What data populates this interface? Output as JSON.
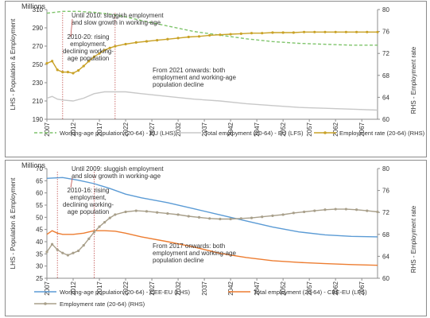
{
  "chart_data": [
    {
      "type": "line",
      "units": "Millions",
      "ylabel": "LHS - Population & Employment",
      "y2label": "RHS - Employment rate",
      "ylim": [
        190,
        310
      ],
      "yticks": [
        190,
        210,
        230,
        250,
        270,
        290,
        310
      ],
      "y2lim": [
        60,
        80
      ],
      "y2ticks": [
        60,
        64,
        68,
        72,
        76,
        80
      ],
      "xticks": [
        2007,
        2012,
        2017,
        2022,
        2027,
        2032,
        2037,
        2042,
        2047,
        2052,
        2057,
        2062,
        2067
      ],
      "xlim": [
        2007,
        2070
      ],
      "annotations": [
        {
          "lines": [
            "Until 2010: sluggish employment",
            "and slow growth in working-age"
          ],
          "marker_year": 2010
        },
        {
          "lines": [
            "2010-20: rising",
            "employment,",
            "declining working-",
            "age population"
          ],
          "marker_year": 2020
        },
        {
          "lines": [
            "From 2021 onwards: both",
            "employment and working-age",
            "population decline"
          ]
        }
      ],
      "colors": {
        "working_age": "#7fc46b",
        "employment": "#c8c8c8",
        "rate": "#c9a227"
      },
      "series": [
        {
          "name": "Working-age population (20-64) - EU (LHS)",
          "axis": "left",
          "style": "dashed",
          "x": [
            2007,
            2010,
            2013,
            2016,
            2019,
            2022,
            2025,
            2030,
            2035,
            2040,
            2045,
            2050,
            2055,
            2060,
            2065,
            2070
          ],
          "values": [
            306,
            308,
            308,
            307,
            305,
            302,
            298,
            292,
            286,
            282,
            278,
            275,
            273,
            272,
            271,
            271
          ]
        },
        {
          "name": "Total employment (20-64) - EU (LFS)",
          "axis": "left",
          "style": "solid",
          "x": [
            2007,
            2008,
            2009,
            2010,
            2012,
            2014,
            2016,
            2018,
            2020,
            2022,
            2025,
            2030,
            2035,
            2040,
            2045,
            2050,
            2055,
            2060,
            2065,
            2070
          ],
          "values": [
            213,
            215,
            212,
            211,
            210,
            213,
            218,
            220,
            220,
            220,
            218,
            215,
            212,
            210,
            207,
            205,
            203,
            202,
            201,
            200
          ]
        },
        {
          "name": "Employment rate (20-64) (RHS)",
          "axis": "right",
          "style": "marker",
          "x": [
            2007,
            2008,
            2009,
            2010,
            2011,
            2012,
            2013,
            2014,
            2015,
            2016,
            2017,
            2018,
            2019,
            2020,
            2022,
            2024,
            2026,
            2028,
            2030,
            2032,
            2034,
            2036,
            2038,
            2040,
            2042,
            2044,
            2046,
            2048,
            2050,
            2052,
            2054,
            2056,
            2058,
            2060,
            2062,
            2064,
            2066,
            2068,
            2070
          ],
          "values": [
            70.2,
            70.6,
            69.0,
            68.6,
            68.6,
            68.4,
            68.9,
            69.7,
            70.6,
            71.4,
            72.0,
            72.6,
            73.0,
            73.3,
            73.7,
            74.0,
            74.2,
            74.4,
            74.6,
            74.8,
            75.0,
            75.1,
            75.3,
            75.4,
            75.5,
            75.6,
            75.7,
            75.7,
            75.8,
            75.8,
            75.8,
            75.9,
            75.9,
            75.9,
            75.9,
            75.9,
            75.9,
            75.9,
            75.9
          ]
        }
      ]
    },
    {
      "type": "line",
      "units": "Millions",
      "ylabel": "LHS - Population & Employment",
      "y2label": "RHS - Employment rate",
      "ylim": [
        25,
        70
      ],
      "yticks": [
        25,
        30,
        35,
        40,
        45,
        50,
        55,
        60,
        65,
        70
      ],
      "y2lim": [
        60,
        80
      ],
      "y2ticks": [
        60,
        64,
        68,
        72,
        76,
        80
      ],
      "xticks": [
        2007,
        2012,
        2017,
        2022,
        2027,
        2032,
        2037,
        2042,
        2047,
        2052,
        2057,
        2062,
        2067
      ],
      "xlim": [
        2007,
        2070
      ],
      "annotations": [
        {
          "lines": [
            "Until 2009: sluggish employment",
            "and slow growth in working-age"
          ],
          "marker_year": 2009
        },
        {
          "lines": [
            "2010-16: rising",
            "employment,",
            "declining working-",
            "age population"
          ],
          "marker_year": 2016
        },
        {
          "lines": [
            "From 2017 onwards: both",
            "employment and working-age",
            "population decline"
          ]
        }
      ],
      "colors": {
        "working_age": "#5b9bd5",
        "employment": "#ed7d31",
        "rate": "#a89f8a"
      },
      "series": [
        {
          "name": "Working-age population (20-64) - CEE-EU (LHS)",
          "axis": "left",
          "style": "solid",
          "x": [
            2007,
            2010,
            2013,
            2016,
            2019,
            2022,
            2025,
            2030,
            2035,
            2040,
            2045,
            2050,
            2055,
            2060,
            2065,
            2070
          ],
          "values": [
            66,
            66.3,
            65.2,
            63.8,
            61.8,
            59.5,
            58,
            56,
            53.5,
            51,
            48.5,
            46,
            44,
            42.8,
            42.2,
            42
          ]
        },
        {
          "name": "Total employment (20-64) - CEE-EU (LFS)",
          "axis": "left",
          "style": "solid",
          "x": [
            2007,
            2008,
            2009,
            2010,
            2012,
            2014,
            2016,
            2018,
            2020,
            2022,
            2025,
            2030,
            2035,
            2040,
            2045,
            2050,
            2055,
            2060,
            2065,
            2070
          ],
          "values": [
            43,
            44.5,
            43.5,
            43,
            43,
            43.5,
            44.5,
            44.5,
            44.3,
            43.5,
            42,
            40,
            37.8,
            35.2,
            33.5,
            32.2,
            31.5,
            31,
            30.6,
            30.3
          ]
        },
        {
          "name": "Employment rate (20-64) (RHS)",
          "axis": "right",
          "style": "marker",
          "x": [
            2007,
            2008,
            2009,
            2010,
            2011,
            2012,
            2013,
            2014,
            2015,
            2016,
            2017,
            2018,
            2019,
            2020,
            2022,
            2024,
            2026,
            2028,
            2030,
            2032,
            2034,
            2036,
            2038,
            2040,
            2042,
            2044,
            2046,
            2048,
            2050,
            2052,
            2054,
            2056,
            2058,
            2060,
            2062,
            2064,
            2066,
            2068,
            2070
          ],
          "values": [
            64.8,
            66.2,
            65.2,
            64.6,
            64.2,
            64.6,
            65.0,
            66.0,
            67.2,
            68.4,
            69.4,
            70.2,
            71.0,
            71.6,
            72.1,
            72.3,
            72.2,
            72.0,
            71.8,
            71.6,
            71.3,
            71.1,
            70.9,
            70.8,
            70.8,
            70.9,
            71.0,
            71.2,
            71.4,
            71.6,
            71.9,
            72.1,
            72.3,
            72.5,
            72.6,
            72.6,
            72.5,
            72.3,
            72.1
          ]
        }
      ]
    }
  ]
}
